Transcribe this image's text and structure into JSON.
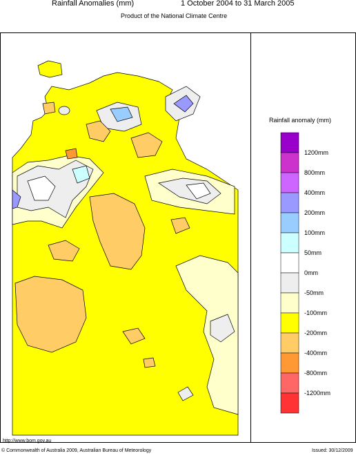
{
  "header": {
    "title": "Rainfall Anomalies (mm)",
    "period": "1 October 2004 to 31 March 2005",
    "subtitle": "Product of the National Climate Centre"
  },
  "legend": {
    "title": "Rainfall anomaly (mm)",
    "colors": [
      "#9900cc",
      "#cc33cc",
      "#cc66ff",
      "#9999ff",
      "#99ccff",
      "#ccffff",
      "#ffffff",
      "#eeeeee",
      "#ffffcc",
      "#ffff00",
      "#ffcc66",
      "#ff9933",
      "#ff6666",
      "#ff3333"
    ],
    "labels": [
      "1200mm",
      "800mm",
      "400mm",
      "200mm",
      "100mm",
      "50mm",
      "0mm",
      "-50mm",
      "-100mm",
      "-200mm",
      "-400mm",
      "-800mm",
      "-1200mm"
    ]
  },
  "footer": {
    "url": "http://www.bom.gov.au",
    "copyright": "© Commonwealth of Australia 2009, Australian Bureau of Meteorology",
    "issued": "Issued: 30/12/2009"
  }
}
